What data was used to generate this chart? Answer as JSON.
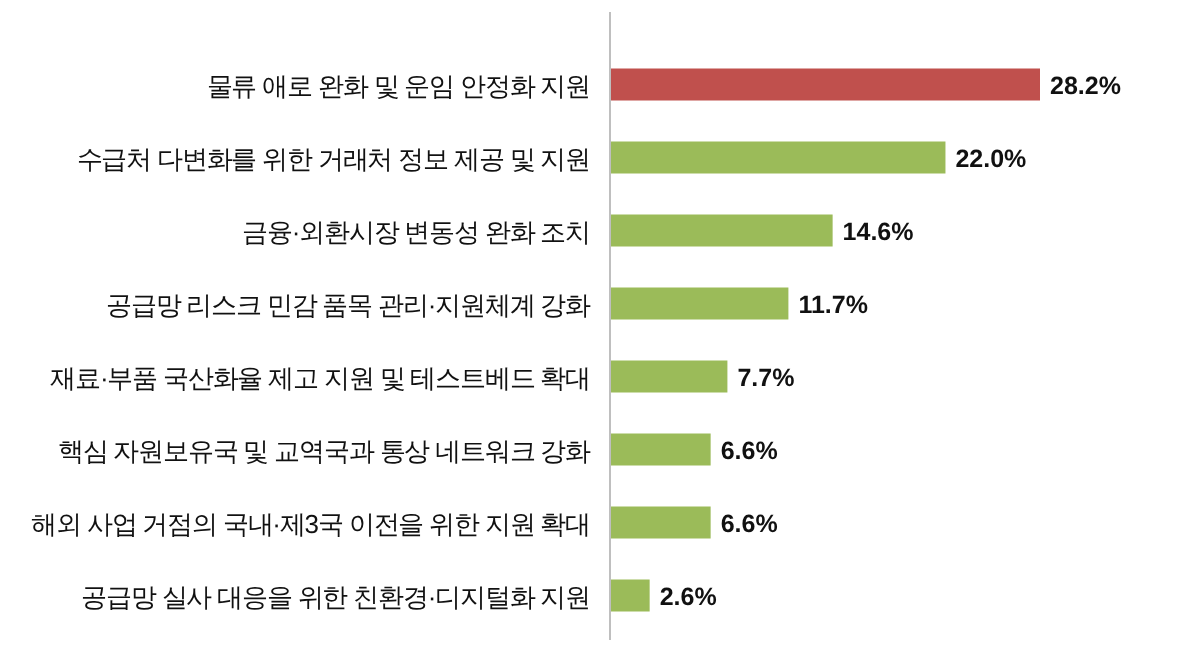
{
  "chart_data": {
    "type": "bar",
    "orientation": "horizontal",
    "data_labels": true,
    "categories": [
      "물류 애로 완화 및 운임 안정화 지원",
      "수급처 다변화를 위한 거래처 정보 제공 및 지원",
      "금융·외환시장 변동성 완화 조치",
      "공급망 리스크 민감 품목 관리·지원체계 강화",
      "재료·부품 국산화율 제고 지원 및 테스트베드 확대",
      "핵심 자원보유국 및 교역국과 통상 네트워크 강화",
      "해외 사업 거점의 국내·제3국 이전을 위한 지원 확대",
      "공급망 실사 대응을 위한 친환경·디지털화 지원"
    ],
    "values": [
      28.2,
      22.0,
      14.6,
      11.7,
      7.7,
      6.6,
      6.6,
      2.6
    ],
    "value_labels": [
      "28.2%",
      "22.0%",
      "14.6%",
      "11.7%",
      "7.7%",
      "6.6%",
      "6.6%",
      "2.6%"
    ],
    "colors": [
      "#c0504d",
      "#9bbb59",
      "#9bbb59",
      "#9bbb59",
      "#9bbb59",
      "#9bbb59",
      "#9bbb59",
      "#9bbb59"
    ]
  }
}
